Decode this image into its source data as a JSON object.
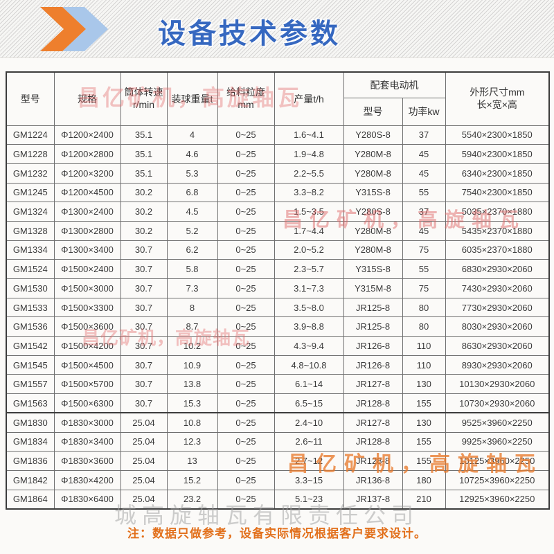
{
  "banner": {
    "title": "设备技术参数",
    "icon": "double-chevron",
    "accent_blue": "#3668c0",
    "chevron_orange": "#ee7f2d",
    "chevron_light_blue": "#a9c7ea"
  },
  "table": {
    "headers": {
      "model": "型号",
      "spec": "规格",
      "speed_l1": "筒体转速",
      "speed_l2": "r/min",
      "ball_weight": "装球重量t",
      "feed_l1": "给料粒度",
      "feed_l2": "mm",
      "output": "产量t/h",
      "motor_group": "配套电动机",
      "motor_model": "型号",
      "motor_power": "功率kw",
      "dims_l1": "外形尺寸mm",
      "dims_l2": "长×宽×高"
    },
    "rows": [
      [
        "GM1224",
        "Φ1200×2400",
        "35.1",
        "4",
        "0~25",
        "1.6~4.1",
        "Y280S-8",
        "37",
        "5540×2300×1850"
      ],
      [
        "GM1228",
        "Φ1200×2800",
        "35.1",
        "4.6",
        "0~25",
        "1.9~4.8",
        "Y280M-8",
        "45",
        "5940×2300×1850"
      ],
      [
        "GM1232",
        "Φ1200×3200",
        "35.1",
        "5.3",
        "0~25",
        "2.2~5.5",
        "Y280M-8",
        "45",
        "6340×2300×1850"
      ],
      [
        "GM1245",
        "Φ1200×4500",
        "30.2",
        "6.8",
        "0~25",
        "3.3~8.2",
        "Y315S-8",
        "55",
        "7540×2300×1850"
      ],
      [
        "GM1324",
        "Φ1300×2400",
        "30.2",
        "4.5",
        "0~25",
        "1.5~3.5",
        "Y280S-8",
        "37",
        "5035×2370×1880"
      ],
      [
        "GM1328",
        "Φ1300×2800",
        "30.2",
        "5.2",
        "0~25",
        "1.7~4.4",
        "Y280M-8",
        "45",
        "5435×2370×1880"
      ],
      [
        "GM1334",
        "Φ1300×3400",
        "30.7",
        "6.2",
        "0~25",
        "2.0~5.2",
        "Y280M-8",
        "75",
        "6035×2370×1880"
      ],
      [
        "GM1524",
        "Φ1500×2400",
        "30.7",
        "5.8",
        "0~25",
        "2.3~5.7",
        "Y315S-8",
        "55",
        "6830×2930×2060"
      ],
      [
        "GM1530",
        "Φ1500×3000",
        "30.7",
        "7.3",
        "0~25",
        "3.1~7.3",
        "Y315M-8",
        "75",
        "7430×2930×2060"
      ],
      [
        "GM1533",
        "Φ1500×3300",
        "30.7",
        "8",
        "0~25",
        "3.5~8.0",
        "JR125-8",
        "80",
        "7730×2930×2060"
      ],
      [
        "GM1536",
        "Φ1500×3600",
        "30.7",
        "8.7",
        "0~25",
        "3.9~8.8",
        "JR125-8",
        "80",
        "8030×2930×2060"
      ],
      [
        "GM1542",
        "Φ1500×4200",
        "30.7",
        "10.2",
        "0~25",
        "4.3~9.4",
        "JR126-8",
        "110",
        "8630×2930×2060"
      ],
      [
        "GM1545",
        "Φ1500×4500",
        "30.7",
        "10.9",
        "0~25",
        "4.8~10.8",
        "JR126-8",
        "110",
        "8930×2930×2060"
      ],
      [
        "GM1557",
        "Φ1500×5700",
        "30.7",
        "13.8",
        "0~25",
        "6.1~14",
        "JR127-8",
        "130",
        "10130×2930×2060"
      ],
      [
        "GM1563",
        "Φ1500×6300",
        "30.7",
        "15.3",
        "0~25",
        "6.5~15",
        "JR128-8",
        "155",
        "10730×2930×2060"
      ],
      [
        "GM1830",
        "Φ1830×3000",
        "25.04",
        "10.8",
        "0~25",
        "2.4~10",
        "JR127-8",
        "130",
        "9525×3960×2250"
      ],
      [
        "GM1834",
        "Φ1830×3400",
        "25.04",
        "12.3",
        "0~25",
        "2.6~11",
        "JR128-8",
        "155",
        "9925×3960×2250"
      ],
      [
        "GM1836",
        "Φ1830×3600",
        "25.04",
        "13",
        "0~25",
        "2.7~12",
        "JR128-8",
        "155",
        "10125×3960×2250"
      ],
      [
        "GM1842",
        "Φ1830×4200",
        "25.04",
        "15.2",
        "0~25",
        "3.3~15",
        "JR136-8",
        "180",
        "10725×3960×2250"
      ],
      [
        "GM1864",
        "Φ1830×6400",
        "25.04",
        "23.2",
        "0~25",
        "5.1~23",
        "JR137-8",
        "210",
        "12925×3960×2250"
      ]
    ],
    "group_break_row_index": 15
  },
  "watermarks": {
    "red_header": "昌亿矿机，高旋轴瓦",
    "red_mid": "昌亿矿机，高旋轴瓦",
    "red_lower": "昌亿矿机，高旋轴瓦",
    "orange_bottom": "昌亿矿机，高旋轴瓦",
    "gray_company": "城高旋轴瓦有限责任公司"
  },
  "note": "注：数据只做参考，设备实际情况根据客户要求设计。",
  "colors": {
    "note_orange": "#e2701c",
    "watermark_red": "#e46c6c",
    "watermark_orange": "#e87a2c",
    "grid_line": "#6f6f6f"
  }
}
